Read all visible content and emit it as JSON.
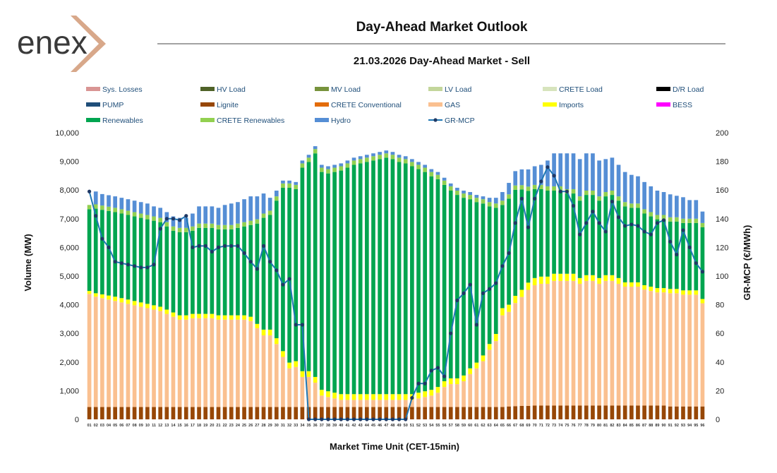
{
  "logo": {
    "text": "enex"
  },
  "chart_data": {
    "type": "bar",
    "title": "Day-Ahead Market Outlook",
    "subtitle": "21.03.2026  Day-Ahead Market - Sell",
    "xlabel": "Market Time Unit (CET-15min)",
    "ylabel": "Volume (MW)",
    "y2label": "GR-MCP (€/MWh)",
    "ylim": [
      0,
      10000
    ],
    "y2lim": [
      0,
      200
    ],
    "yticks": [
      "0",
      "1,000",
      "2,000",
      "3,000",
      "4,000",
      "5,000",
      "6,000",
      "7,000",
      "8,000",
      "9,000",
      "10,000"
    ],
    "y2ticks": [
      "0",
      "20",
      "40",
      "60",
      "80",
      "100",
      "120",
      "140",
      "160",
      "180",
      "200"
    ],
    "categories": [
      "01",
      "02",
      "03",
      "04",
      "05",
      "06",
      "07",
      "08",
      "09",
      "10",
      "11",
      "12",
      "13",
      "14",
      "15",
      "16",
      "17",
      "18",
      "19",
      "20",
      "21",
      "22",
      "23",
      "24",
      "25",
      "26",
      "27",
      "28",
      "29",
      "30",
      "31",
      "32",
      "33",
      "34",
      "35",
      "36",
      "37",
      "38",
      "39",
      "40",
      "41",
      "42",
      "43",
      "44",
      "45",
      "46",
      "47",
      "48",
      "49",
      "50",
      "51",
      "52",
      "53",
      "54",
      "55",
      "56",
      "57",
      "58",
      "59",
      "60",
      "61",
      "62",
      "63",
      "64",
      "65",
      "66",
      "67",
      "68",
      "69",
      "70",
      "71",
      "72",
      "73",
      "74",
      "75",
      "76",
      "77",
      "78",
      "79",
      "80",
      "81",
      "82",
      "83",
      "84",
      "85",
      "86",
      "87",
      "88",
      "89",
      "90",
      "91",
      "92",
      "93",
      "94",
      "95",
      "96"
    ],
    "legend": [
      {
        "name": "Sys. Losses",
        "color": "#d99594",
        "type": "bar"
      },
      {
        "name": "HV Load",
        "color": "#4f6228",
        "type": "bar"
      },
      {
        "name": "MV Load",
        "color": "#77933c",
        "type": "bar"
      },
      {
        "name": "LV Load",
        "color": "#c3d69b",
        "type": "bar"
      },
      {
        "name": "CRETE Load",
        "color": "#d7e4bd",
        "type": "bar"
      },
      {
        "name": "D/R Load",
        "color": "#000000",
        "type": "bar"
      },
      {
        "name": "PUMP",
        "color": "#1f4e79",
        "type": "bar"
      },
      {
        "name": "Lignite",
        "color": "#974706",
        "type": "bar"
      },
      {
        "name": "CRETE Conventional",
        "color": "#e36c09",
        "type": "bar"
      },
      {
        "name": "GAS",
        "color": "#fac090",
        "type": "bar"
      },
      {
        "name": "Imports",
        "color": "#ffff00",
        "type": "bar"
      },
      {
        "name": "BESS",
        "color": "#ff00ff",
        "type": "bar"
      },
      {
        "name": "Renewables",
        "color": "#00a550",
        "type": "bar"
      },
      {
        "name": "CRETE Renewables",
        "color": "#92d050",
        "type": "bar"
      },
      {
        "name": "Hydro",
        "color": "#558ed5",
        "type": "bar"
      },
      {
        "name": "GR-MCP",
        "color": "#1f77b4",
        "type": "line"
      }
    ],
    "series": [
      {
        "name": "Lignite",
        "values": [
          430,
          430,
          430,
          430,
          430,
          430,
          430,
          430,
          430,
          430,
          430,
          430,
          430,
          430,
          430,
          430,
          430,
          430,
          430,
          430,
          430,
          430,
          430,
          430,
          430,
          430,
          430,
          430,
          430,
          430,
          430,
          430,
          430,
          430,
          430,
          430,
          430,
          430,
          430,
          430,
          430,
          430,
          430,
          430,
          430,
          430,
          430,
          430,
          430,
          430,
          430,
          430,
          430,
          430,
          430,
          430,
          430,
          430,
          430,
          430,
          430,
          430,
          430,
          430,
          430,
          450,
          460,
          470,
          470,
          480,
          480,
          480,
          480,
          480,
          480,
          480,
          480,
          480,
          480,
          480,
          480,
          480,
          480,
          480,
          480,
          480,
          480,
          480,
          480,
          480,
          450,
          450,
          450,
          450,
          450,
          450
        ]
      },
      {
        "name": "GAS",
        "values": [
          3950,
          3850,
          3800,
          3750,
          3700,
          3650,
          3600,
          3550,
          3500,
          3450,
          3400,
          3350,
          3250,
          3150,
          3050,
          3050,
          3100,
          3100,
          3100,
          3100,
          3050,
          3050,
          3050,
          3050,
          3050,
          3000,
          2750,
          2500,
          2500,
          2200,
          1750,
          1350,
          1400,
          1050,
          1050,
          850,
          400,
          350,
          300,
          250,
          250,
          250,
          250,
          250,
          250,
          250,
          250,
          250,
          250,
          250,
          250,
          300,
          350,
          400,
          500,
          700,
          800,
          800,
          900,
          1150,
          1350,
          1600,
          2000,
          2300,
          3200,
          3300,
          3600,
          3800,
          4050,
          4200,
          4250,
          4250,
          4350,
          4350,
          4350,
          4350,
          4250,
          4350,
          4350,
          4250,
          4350,
          4350,
          4250,
          4150,
          4150,
          4150,
          4050,
          4000,
          3950,
          3950,
          3950,
          3950,
          3900,
          3900,
          3900,
          3600
        ]
      },
      {
        "name": "Imports",
        "values": [
          100,
          120,
          130,
          140,
          150,
          150,
          150,
          150,
          150,
          150,
          150,
          150,
          150,
          150,
          150,
          150,
          150,
          150,
          150,
          150,
          150,
          150,
          150,
          150,
          150,
          150,
          150,
          200,
          200,
          200,
          200,
          200,
          200,
          200,
          200,
          200,
          200,
          200,
          200,
          200,
          200,
          200,
          200,
          200,
          200,
          200,
          200,
          200,
          200,
          200,
          200,
          200,
          200,
          200,
          200,
          200,
          200,
          200,
          200,
          200,
          200,
          200,
          200,
          250,
          250,
          250,
          250,
          250,
          250,
          250,
          250,
          250,
          250,
          250,
          250,
          250,
          200,
          200,
          200,
          200,
          200,
          200,
          200,
          150,
          150,
          150,
          150,
          150,
          150,
          150,
          150,
          150,
          150,
          150,
          150,
          150
        ]
      },
      {
        "name": "Renewables",
        "values": [
          2850,
          2950,
          2950,
          2950,
          2950,
          2950,
          2950,
          2950,
          2950,
          2950,
          2950,
          2950,
          2900,
          2850,
          2900,
          2900,
          2900,
          3000,
          3000,
          3000,
          3000,
          3000,
          3000,
          3050,
          3100,
          3200,
          3500,
          3900,
          4000,
          4800,
          5700,
          6100,
          6000,
          7100,
          7300,
          7800,
          7600,
          7600,
          7700,
          7800,
          7900,
          8000,
          8050,
          8100,
          8150,
          8200,
          8250,
          8200,
          8100,
          8050,
          7950,
          7800,
          7650,
          7450,
          7250,
          6850,
          6550,
          6400,
          6200,
          5900,
          5600,
          5300,
          4800,
          4400,
          3600,
          3700,
          3700,
          3500,
          3200,
          3100,
          3050,
          3000,
          2900,
          2900,
          2800,
          2800,
          2700,
          2800,
          2800,
          2700,
          2750,
          2800,
          2700,
          2650,
          2600,
          2600,
          2500,
          2450,
          2400,
          2400,
          2350,
          2350,
          2350,
          2350,
          2350,
          2500
        ]
      },
      {
        "name": "CRETE Renewables",
        "values": [
          150,
          150,
          150,
          150,
          150,
          150,
          150,
          150,
          150,
          150,
          150,
          150,
          150,
          150,
          150,
          150,
          150,
          150,
          150,
          150,
          150,
          150,
          150,
          150,
          150,
          150,
          150,
          150,
          150,
          150,
          150,
          150,
          150,
          150,
          150,
          150,
          150,
          150,
          150,
          150,
          150,
          150,
          150,
          150,
          150,
          150,
          150,
          150,
          150,
          150,
          150,
          150,
          150,
          150,
          150,
          150,
          150,
          150,
          150,
          150,
          150,
          150,
          150,
          150,
          150,
          150,
          150,
          150,
          150,
          150,
          150,
          150,
          150,
          150,
          150,
          150,
          150,
          150,
          150,
          150,
          150,
          150,
          150,
          150,
          150,
          150,
          150,
          150,
          150,
          150,
          150,
          150,
          150,
          150,
          150,
          150
        ]
      },
      {
        "name": "Hydro",
        "values": [
          0,
          450,
          400,
          400,
          400,
          400,
          400,
          400,
          400,
          400,
          350,
          350,
          350,
          350,
          350,
          350,
          450,
          600,
          600,
          600,
          600,
          700,
          750,
          750,
          800,
          850,
          800,
          700,
          450,
          200,
          100,
          100,
          100,
          100,
          100,
          100,
          100,
          100,
          100,
          100,
          100,
          100,
          100,
          100,
          100,
          100,
          100,
          100,
          100,
          100,
          100,
          100,
          100,
          100,
          100,
          100,
          100,
          100,
          100,
          100,
          100,
          100,
          150,
          200,
          300,
          400,
          500,
          550,
          600,
          650,
          700,
          900,
          1150,
          1150,
          1250,
          1250,
          1300,
          1300,
          1300,
          1250,
          1150,
          1150,
          1100,
          1050,
          1000,
          950,
          950,
          900,
          850,
          800,
          800,
          750,
          750,
          650,
          650,
          400
        ]
      }
    ],
    "line": {
      "name": "GR-MCP",
      "values": [
        159,
        142,
        126,
        120,
        110,
        109,
        108,
        107,
        106,
        106,
        108,
        133,
        140,
        140,
        139,
        142,
        120,
        121,
        121,
        117,
        120,
        121,
        121,
        121,
        116,
        110,
        105,
        121,
        110,
        104,
        94,
        98,
        66,
        66,
        0,
        0,
        0,
        0,
        0,
        0,
        0,
        0,
        0,
        0,
        0,
        0,
        0,
        0,
        0,
        0,
        15,
        25,
        25,
        34,
        36,
        30,
        60,
        83,
        88,
        94,
        66,
        88,
        91,
        95,
        107,
        116,
        137,
        154,
        134,
        154,
        166,
        176,
        170,
        159,
        159,
        149,
        129,
        137,
        145,
        137,
        131,
        152,
        141,
        135,
        136,
        135,
        131,
        129,
        137,
        139,
        124,
        115,
        132,
        120,
        109,
        103
      ]
    }
  }
}
